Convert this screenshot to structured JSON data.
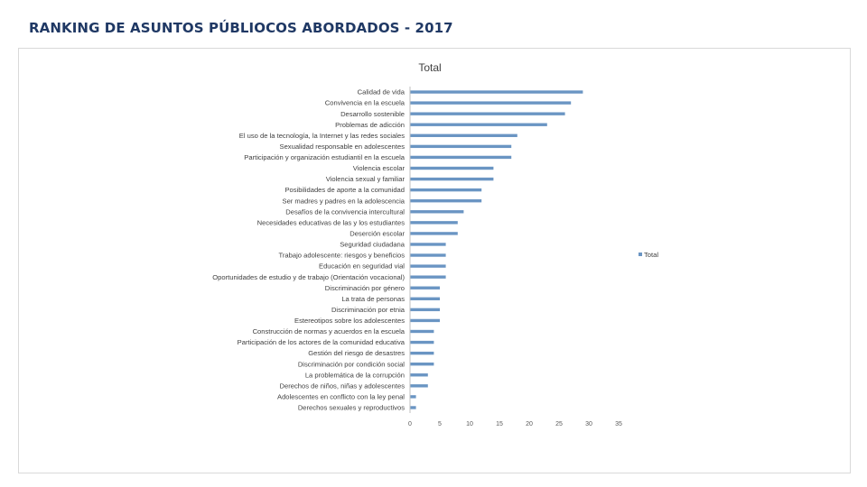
{
  "slide": {
    "title": "RANKING DE ASUNTOS PÚBLIOCOS ABORDADOS - 2017"
  },
  "colors": {
    "bar": "#6a95c3",
    "axis": "#bfbfbf",
    "title": "#1f3864"
  },
  "chart_data": {
    "type": "bar",
    "orientation": "horizontal",
    "title": "Total",
    "xlabel": "",
    "ylabel": "",
    "xlim": [
      0,
      35
    ],
    "xticks": [
      0,
      5,
      10,
      15,
      20,
      25,
      30,
      35
    ],
    "grid": false,
    "legend": {
      "entries": [
        "Total"
      ],
      "position": "right"
    },
    "categories": [
      "Calidad de vida",
      "Convivencia en la escuela",
      "Desarrollo sostenible",
      "Problemas de adicción",
      "El uso de la tecnología, la Internet y las redes sociales",
      "Sexualidad responsable en adolescentes",
      "Participación y organización estudiantil en la escuela",
      "Violencia escolar",
      "Violencia sexual y familiar",
      "Posibilidades de aporte a la comunidad",
      "Ser madres y padres en la adolescencia",
      "Desafíos de la convivencia intercultural",
      "Necesidades educativas de las y los estudiantes",
      "Deserción escolar",
      "Seguridad ciudadana",
      "Trabajo adolescente: riesgos y beneficios",
      "Educación en seguridad vial",
      "Oportunidades de estudio y de trabajo (Orientación vocacional)",
      "Discriminación por género",
      "La trata de personas",
      "Discriminación por etnia",
      "Estereotipos sobre los adolescentes",
      "Construcción de normas y acuerdos en la escuela",
      "Participación de los actores de la comunidad educativa",
      "Gestión del riesgo de desastres",
      "Discriminación por condición social",
      "La problemática de la corrupción",
      "Derechos de niños, niñas y adolescentes",
      "Adolescentes en conflicto con la ley penal",
      "Derechos sexuales y reproductivos"
    ],
    "series": [
      {
        "name": "Total",
        "values": [
          29,
          27,
          26,
          23,
          18,
          17,
          17,
          14,
          14,
          12,
          12,
          9,
          8,
          8,
          6,
          6,
          6,
          6,
          5,
          5,
          5,
          5,
          4,
          4,
          4,
          4,
          3,
          3,
          1,
          1
        ]
      }
    ]
  }
}
